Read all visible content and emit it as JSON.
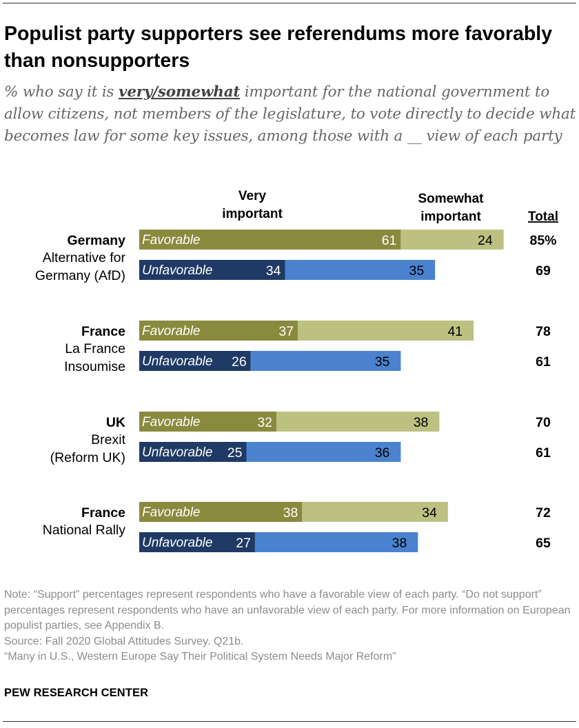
{
  "title": "Populist party supporters see referendums more favorably than nonsupporters",
  "subtitle": {
    "prefix": "% who say it is ",
    "emphasis": "very/somewhat",
    "suffix": " important for the national government to allow citizens, not members of the legislature, to vote directly to decide what becomes law for some key issues, among those with a __ view of each party"
  },
  "chart_data": {
    "type": "bar",
    "stacked": true,
    "orientation": "horizontal",
    "column_headers": {
      "very": [
        "Very",
        "important"
      ],
      "somewhat": [
        "Somewhat",
        "important"
      ],
      "total": "Total"
    },
    "groups": [
      {
        "country": "Germany",
        "party": [
          "Alternative for",
          "Germany (AfD)"
        ],
        "rows": [
          {
            "view": "Favorable",
            "very": 61,
            "somewhat": 24,
            "total": "85%"
          },
          {
            "view": "Unfavorable",
            "very": 34,
            "somewhat": 35,
            "total": "69"
          }
        ]
      },
      {
        "country": "France",
        "party": [
          "La France",
          "Insoumise"
        ],
        "rows": [
          {
            "view": "Favorable",
            "very": 37,
            "somewhat": 41,
            "total": "78"
          },
          {
            "view": "Unfavorable",
            "very": 26,
            "somewhat": 35,
            "total": "61"
          }
        ]
      },
      {
        "country": "UK",
        "party": [
          "Brexit",
          "(Reform UK)"
        ],
        "rows": [
          {
            "view": "Favorable",
            "very": 32,
            "somewhat": 38,
            "total": "70"
          },
          {
            "view": "Unfavorable",
            "very": 25,
            "somewhat": 36,
            "total": "61"
          }
        ]
      },
      {
        "country": "France",
        "party": [
          "National Rally"
        ],
        "rows": [
          {
            "view": "Favorable",
            "very": 38,
            "somewhat": 34,
            "total": "72"
          },
          {
            "view": "Unfavorable",
            "very": 27,
            "somewhat": 38,
            "total": "65"
          }
        ]
      }
    ],
    "colors": {
      "favorable_very": "#8a8a3e",
      "favorable_somewhat": "#bcc182",
      "unfavorable_very": "#1f3a64",
      "unfavorable_somewhat": "#4a82cf"
    }
  },
  "notes": {
    "note": "Note: “Support” percentages represent respondents who have a favorable view of each party. “Do not support” percentages represent respondents who have an unfavorable view of each party.  For more information on European populist parties, see Appendix B.",
    "source": "Source: Fall 2020 Global Attitudes Survey. Q21b.",
    "report": "“Many in U.S., Western Europe Say Their Political System Needs Major Reform”"
  },
  "brand": "PEW RESEARCH CENTER"
}
